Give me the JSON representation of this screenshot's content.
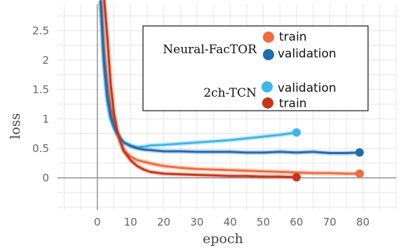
{
  "chart_data": {
    "type": "line",
    "title": "",
    "xlabel": "epoch",
    "ylabel": "loss",
    "xlim": [
      -12,
      90
    ],
    "ylim": [
      -0.55,
      2.95
    ],
    "x_ticks": [
      "0",
      "10",
      "20",
      "30",
      "40",
      "50",
      "60",
      "70",
      "80"
    ],
    "y_ticks": [
      "0",
      "0.5",
      "1",
      "1.5",
      "2",
      "2.5"
    ],
    "grid": true,
    "legend_position": "top-right",
    "legend": {
      "groups": [
        {
          "name": "Neural-FacTOR",
          "entries": [
            {
              "label": "train",
              "series_index": 0
            },
            {
              "label": "validation",
              "series_index": 1
            }
          ]
        },
        {
          "name": "2ch-TCN",
          "entries": [
            {
              "label": "validation",
              "series_index": 2
            },
            {
              "label": "train",
              "series_index": 3
            }
          ]
        }
      ]
    },
    "series": [
      {
        "color": "#f26b3a",
        "x": [
          1,
          2,
          3,
          4,
          5,
          6,
          7,
          8,
          10,
          12,
          15,
          18,
          20,
          25,
          30,
          35,
          40,
          45,
          50,
          55,
          60,
          65,
          70,
          75,
          79
        ],
        "y": [
          3.2,
          2.2,
          1.6,
          1.2,
          0.95,
          0.75,
          0.6,
          0.47,
          0.36,
          0.3,
          0.26,
          0.22,
          0.2,
          0.17,
          0.15,
          0.14,
          0.13,
          0.12,
          0.11,
          0.1,
          0.09,
          0.08,
          0.08,
          0.07,
          0.07
        ]
      },
      {
        "color": "#1f6cb0",
        "x": [
          1,
          2,
          3,
          4,
          5,
          6,
          7,
          8,
          10,
          12,
          14,
          16,
          20,
          25,
          30,
          35,
          40,
          45,
          50,
          55,
          60,
          65,
          70,
          75,
          79
        ],
        "y": [
          3.0,
          2.0,
          1.4,
          1.05,
          0.88,
          0.76,
          0.67,
          0.6,
          0.54,
          0.5,
          0.48,
          0.47,
          0.45,
          0.45,
          0.44,
          0.44,
          0.44,
          0.43,
          0.43,
          0.44,
          0.43,
          0.44,
          0.42,
          0.42,
          0.43
        ]
      },
      {
        "color": "#3cb7ea",
        "x": [
          1,
          2,
          3,
          4,
          5,
          6,
          7,
          8,
          10,
          12,
          14,
          16,
          20,
          25,
          30,
          35,
          40,
          45,
          50,
          55,
          60
        ],
        "y": [
          3.0,
          1.9,
          1.3,
          1.0,
          0.84,
          0.74,
          0.66,
          0.6,
          0.55,
          0.52,
          0.53,
          0.55,
          0.56,
          0.58,
          0.6,
          0.62,
          0.64,
          0.67,
          0.7,
          0.73,
          0.77
        ]
      },
      {
        "color": "#c8351a",
        "x": [
          2,
          3,
          4,
          5,
          6,
          7,
          8,
          10,
          12,
          14,
          16,
          20,
          25,
          30,
          35,
          40,
          45,
          50,
          55,
          60
        ],
        "y": [
          3.4,
          2.4,
          1.6,
          1.1,
          0.8,
          0.6,
          0.45,
          0.3,
          0.2,
          0.14,
          0.1,
          0.07,
          0.06,
          0.05,
          0.04,
          0.03,
          0.03,
          0.02,
          0.02,
          0.01
        ]
      }
    ]
  }
}
